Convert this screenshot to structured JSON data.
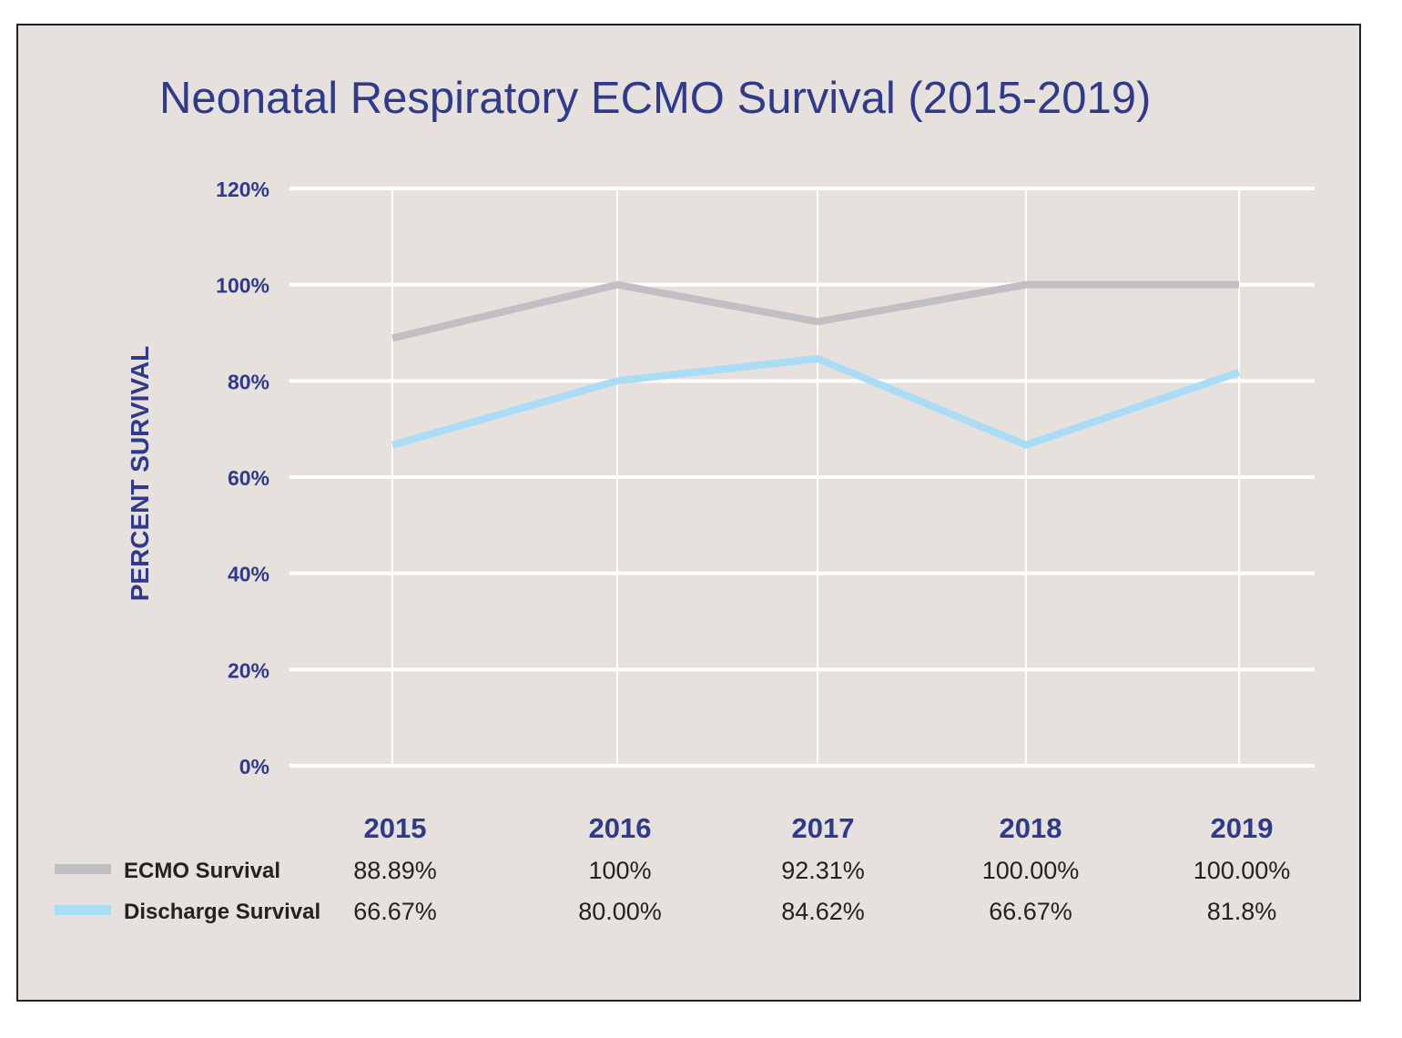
{
  "chart_data": {
    "type": "line",
    "title": "Neonatal Respiratory ECMO Survival (2015-2019)",
    "xlabel": "",
    "ylabel": "PERCENT SURVIVAL",
    "categories": [
      "2015",
      "2016",
      "2017",
      "2018",
      "2019"
    ],
    "ylim": [
      0,
      120
    ],
    "yticks": [
      0,
      20,
      40,
      60,
      80,
      100,
      120
    ],
    "ytick_labels": [
      "0%",
      "20%",
      "40%",
      "60%",
      "80%",
      "100%",
      "120%"
    ],
    "grid": true,
    "legend_position": "bottom-left (data table)",
    "series": [
      {
        "name": "ECMO Survival",
        "color": "#c0c0c3",
        "values": [
          88.89,
          100,
          92.31,
          100.0,
          100.0
        ],
        "labels": [
          "88.89%",
          "100%",
          "92.31%",
          "100.00%",
          "100.00%"
        ]
      },
      {
        "name": "Discharge Survival",
        "color": "#a9dcf6",
        "values": [
          66.67,
          80.0,
          84.62,
          66.67,
          81.8
        ],
        "labels": [
          "66.67%",
          "80.00%",
          "84.62%",
          "66.67%",
          "81.8%"
        ]
      }
    ],
    "colors": {
      "background": "#e6e1dc",
      "title": "#2f3a8c",
      "grid": "#ffffff",
      "text": "#222222"
    }
  }
}
